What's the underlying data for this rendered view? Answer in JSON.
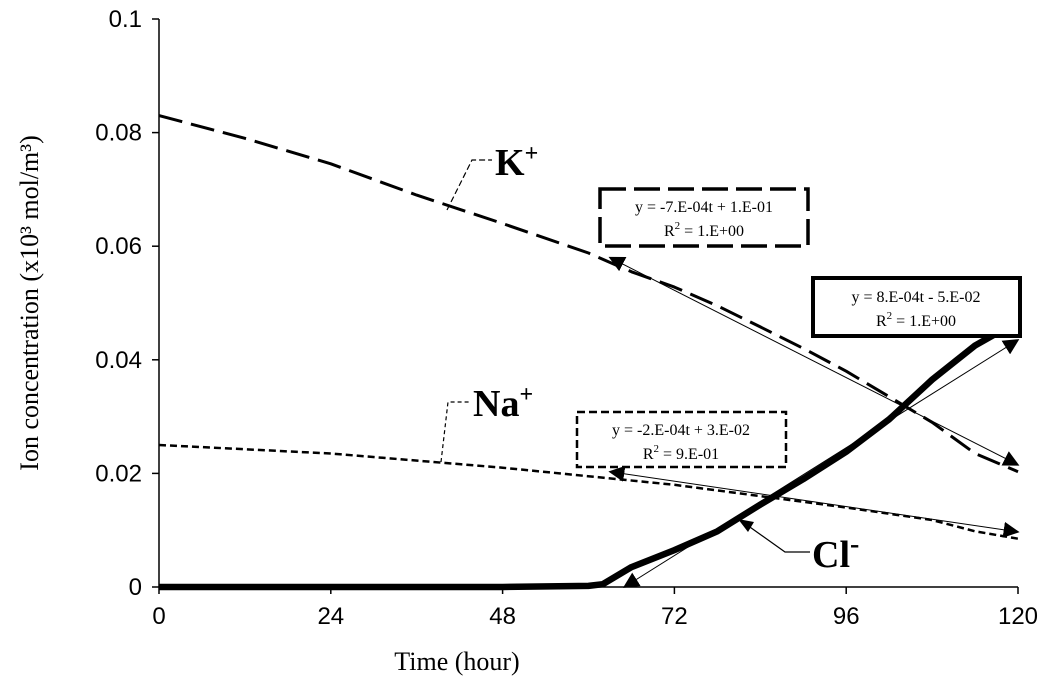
{
  "chart_data": {
    "type": "line",
    "xlabel": "Time (hour)",
    "ylabel": "Ion concentration (x10³ mol/m³)",
    "xlim": [
      0,
      120
    ],
    "ylim": [
      0,
      0.1
    ],
    "x_ticks": [
      "0",
      "24",
      "48",
      "72",
      "96",
      "120"
    ],
    "y_ticks": [
      "0",
      "0.02",
      "0.04",
      "0.06",
      "0.08",
      "0.1"
    ],
    "grid": false,
    "series": [
      {
        "name": "K+",
        "style": "long-dash",
        "x": [
          0,
          12,
          24,
          36,
          48,
          60,
          66,
          72,
          78,
          84,
          90,
          96,
          102,
          108,
          114,
          120
        ],
        "y": [
          0.083,
          0.079,
          0.0745,
          0.069,
          0.064,
          0.0588,
          0.0555,
          0.0528,
          0.0495,
          0.0458,
          0.042,
          0.038,
          0.0335,
          0.029,
          0.0235,
          0.0203
        ]
      },
      {
        "name": "Na+",
        "style": "short-dash",
        "x": [
          0,
          24,
          48,
          72,
          84,
          96,
          108,
          114,
          120
        ],
        "y": [
          0.025,
          0.0235,
          0.021,
          0.018,
          0.016,
          0.014,
          0.0118,
          0.0098,
          0.0085
        ]
      },
      {
        "name": "Cl-",
        "style": "thick-solid",
        "x": [
          0,
          24,
          48,
          60,
          62,
          66,
          72,
          78,
          84,
          90,
          96,
          102,
          108,
          114,
          120
        ],
        "y": [
          0,
          0,
          0,
          0.0002,
          0.0005,
          0.0035,
          0.0065,
          0.0098,
          0.0145,
          0.019,
          0.0238,
          0.0295,
          0.0365,
          0.0425,
          0.0468
        ]
      }
    ],
    "labels": [
      {
        "text": "K",
        "sup": "+"
      },
      {
        "text": "Na",
        "sup": "+"
      },
      {
        "text": "Cl",
        "sup": "-"
      }
    ],
    "fits": [
      {
        "series": "K+",
        "equation": "y = -7.E-04t + 1.E-01",
        "r2_text": "R",
        "r2_sup": "2",
        "r2_value": " = 1.E+00",
        "x": [
          63,
          120
        ],
        "y": [
          0.058,
          0.0215
        ]
      },
      {
        "series": "Cl-",
        "equation": "y = 8.E-04t - 5.E-02",
        "r2_text": "R",
        "r2_sup": "2",
        "r2_value": " = 1.E+00",
        "x": [
          65,
          120
        ],
        "y": [
          0,
          0.0435
        ]
      },
      {
        "series": "Na+",
        "equation": "y = -2.E-04t + 3.E-02",
        "r2_text": "R",
        "r2_sup": "2",
        "r2_value": " = 9.E-01",
        "x": [
          63,
          120
        ],
        "y": [
          0.0203,
          0.0097
        ]
      }
    ]
  }
}
